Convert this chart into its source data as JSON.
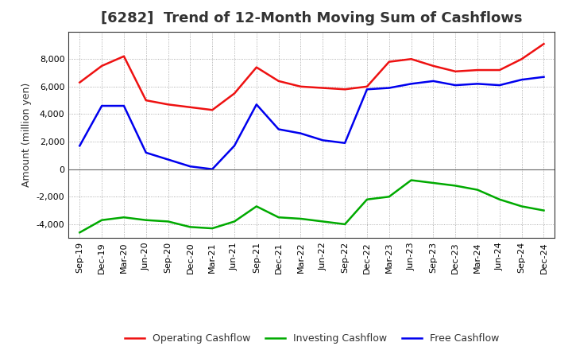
{
  "title": "[6282]  Trend of 12-Month Moving Sum of Cashflows",
  "ylabel": "Amount (million yen)",
  "ylim": [
    -5000,
    10000
  ],
  "yticks": [
    -4000,
    -2000,
    0,
    2000,
    4000,
    6000,
    8000
  ],
  "labels": [
    "Sep-19",
    "Dec-19",
    "Mar-20",
    "Jun-20",
    "Sep-20",
    "Dec-20",
    "Mar-21",
    "Jun-21",
    "Sep-21",
    "Dec-21",
    "Mar-22",
    "Jun-22",
    "Sep-22",
    "Dec-22",
    "Mar-23",
    "Jun-23",
    "Sep-23",
    "Dec-23",
    "Mar-24",
    "Jun-24",
    "Sep-24",
    "Dec-24"
  ],
  "operating": [
    6300,
    7500,
    8200,
    5000,
    4700,
    4500,
    4300,
    5500,
    7400,
    6400,
    6000,
    5900,
    5800,
    6000,
    7800,
    8000,
    7500,
    7100,
    7200,
    7200,
    8000,
    9100
  ],
  "investing": [
    -4600,
    -3700,
    -3500,
    -3700,
    -3800,
    -4200,
    -4300,
    -3800,
    -2700,
    -3500,
    -3600,
    -3800,
    -4000,
    -2200,
    -2000,
    -800,
    -1000,
    -1200,
    -1500,
    -2200,
    -2700,
    -3000
  ],
  "free": [
    1700,
    4600,
    4600,
    1200,
    700,
    200,
    0,
    1700,
    4700,
    2900,
    2600,
    2100,
    1900,
    5800,
    5900,
    6200,
    6400,
    6100,
    6200,
    6100,
    6500,
    6700
  ],
  "operating_color": "#EE1111",
  "investing_color": "#00AA00",
  "free_color": "#0000EE",
  "background_color": "#FFFFFF",
  "plot_bg_color": "#FFFFFF",
  "grid_color": "#999999",
  "line_width": 1.8,
  "title_fontsize": 13,
  "legend_fontsize": 9,
  "tick_fontsize": 8,
  "ylabel_fontsize": 9
}
